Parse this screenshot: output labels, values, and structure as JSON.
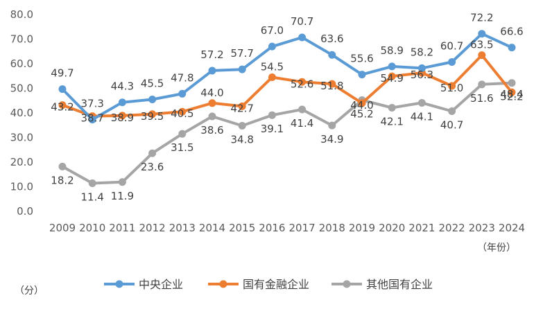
{
  "chart_data": {
    "type": "line",
    "xlabel": "（年份）",
    "ylabel": "（分）",
    "ylim": [
      0,
      80
    ],
    "yticks": [
      "0.0",
      "10.0",
      "20.0",
      "30.0",
      "40.0",
      "50.0",
      "60.0",
      "70.0",
      "80.0"
    ],
    "legend_position": "bottom",
    "grid": false,
    "categories": [
      "2009",
      "2010",
      "2011",
      "2012",
      "2013",
      "2014",
      "2015",
      "2016",
      "2017",
      "2018",
      "2019",
      "2020",
      "2021",
      "2022",
      "2023",
      "2024"
    ],
    "series": [
      {
        "name": "中央企业",
        "color": "#5B9BD5",
        "values": [
          49.7,
          37.3,
          44.3,
          45.5,
          47.8,
          57.2,
          57.7,
          67.0,
          70.7,
          63.6,
          55.6,
          58.9,
          58.2,
          60.7,
          72.2,
          66.6
        ]
      },
      {
        "name": "国有金融企业",
        "color": "#ED7D31",
        "values": [
          43.2,
          38.7,
          38.9,
          39.5,
          40.5,
          44.0,
          42.7,
          54.5,
          52.6,
          51.8,
          44.0,
          54.9,
          56.3,
          51.0,
          63.5,
          48.4
        ]
      },
      {
        "name": "其他国有企业",
        "color": "#A5A5A5",
        "values": [
          18.2,
          11.4,
          11.9,
          23.6,
          31.5,
          38.6,
          34.8,
          39.1,
          41.4,
          34.9,
          45.2,
          42.1,
          44.1,
          40.7,
          51.6,
          52.2
        ]
      }
    ]
  }
}
